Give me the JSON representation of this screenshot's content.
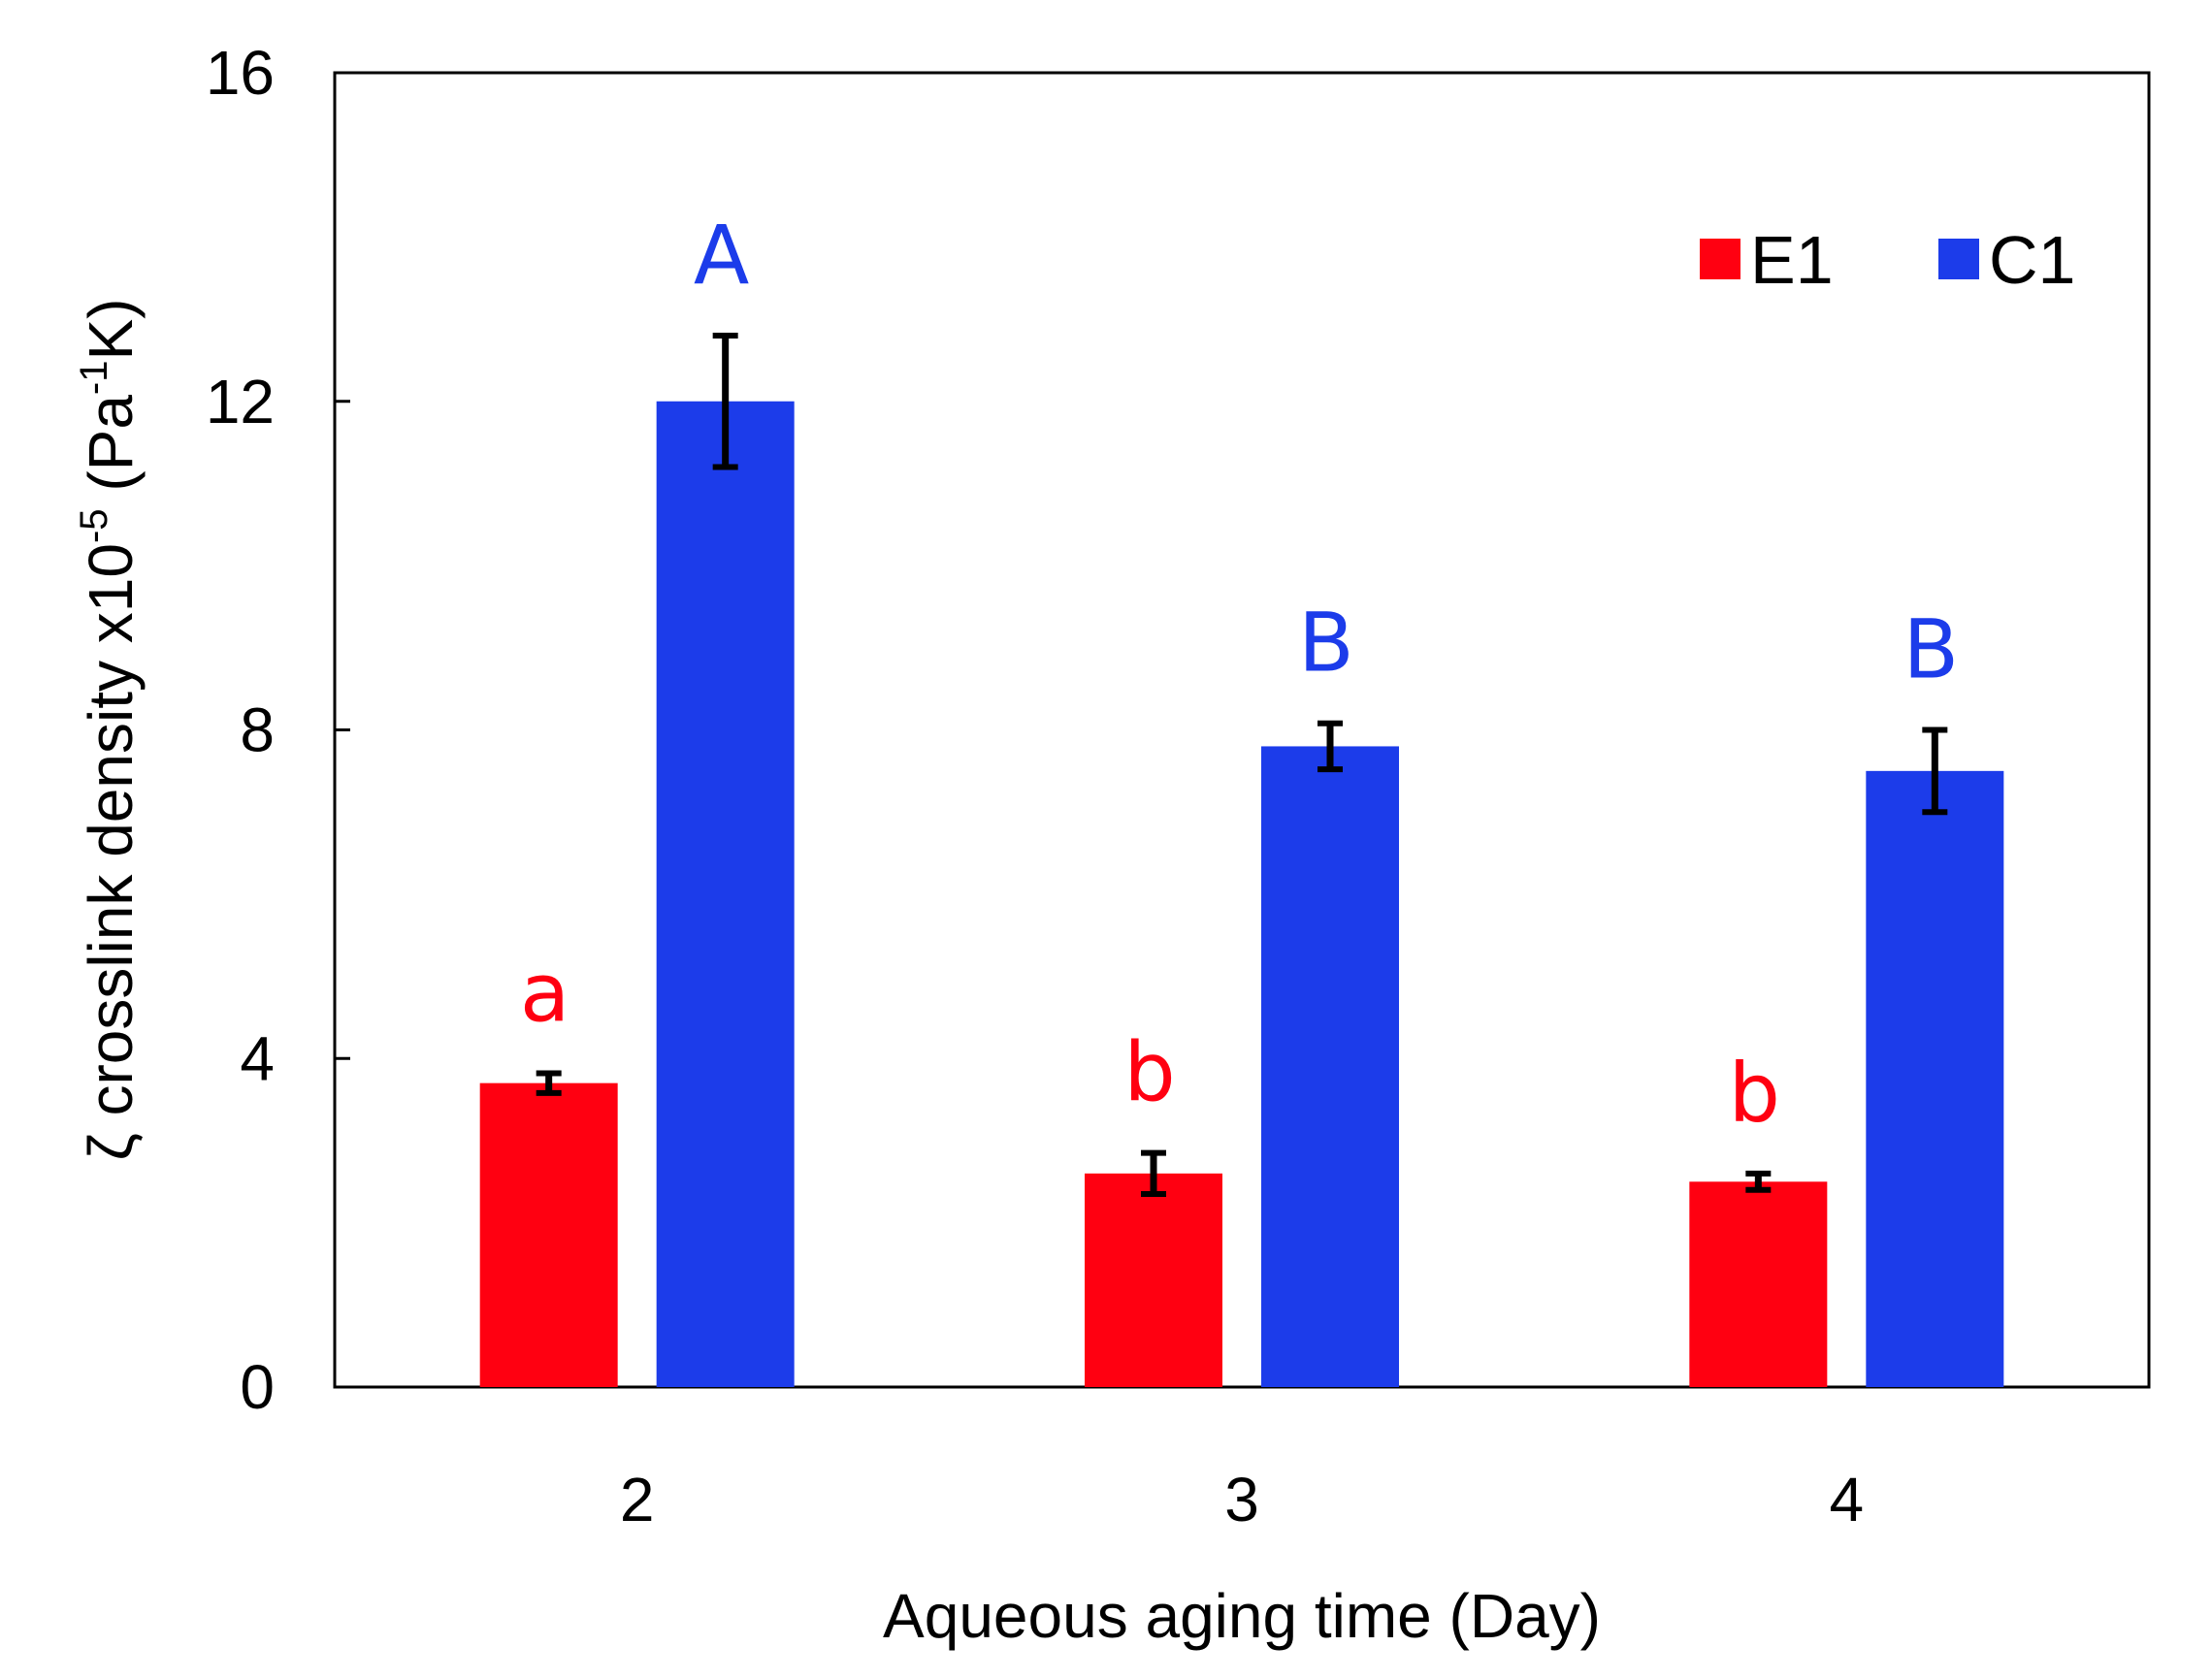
{
  "chart_data": {
    "type": "bar",
    "title": "",
    "xlabel": "Aqueous aging time (Day)",
    "ylabel": {
      "prefix": "ζ crosslink density x10",
      "exp1": "-5",
      "mid": " (Pa",
      "exp2": "-1",
      "suffix": "K)"
    },
    "categories": [
      "2",
      "3",
      "4"
    ],
    "ylim": [
      0,
      16
    ],
    "yticks": [
      0,
      4,
      8,
      12,
      16
    ],
    "grid": false,
    "legend_position": "top-right",
    "series": [
      {
        "name": "E1",
        "color": "#ff0011",
        "values": [
          3.7,
          2.6,
          2.5
        ],
        "errors": [
          0.12,
          0.25,
          0.1
        ],
        "sig_labels": [
          "a",
          "b",
          "b"
        ]
      },
      {
        "name": "C1",
        "color": "#1c3cea",
        "values": [
          12.0,
          7.8,
          7.5
        ],
        "errors": [
          0.8,
          0.28,
          0.5
        ],
        "sig_labels": [
          "A",
          "B",
          "B"
        ]
      }
    ]
  }
}
